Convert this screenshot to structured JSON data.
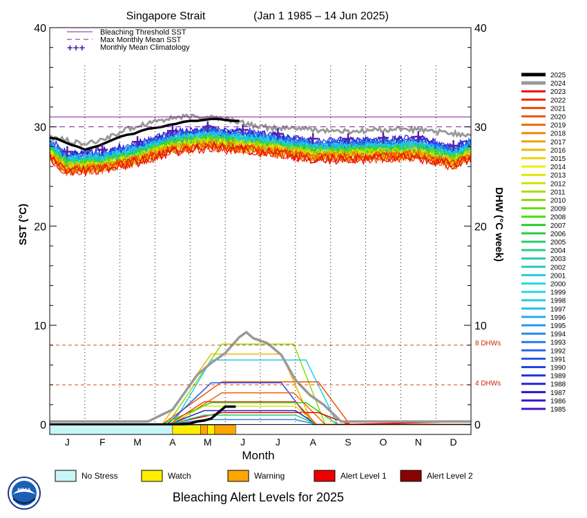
{
  "chart_data": {
    "type": "line",
    "title": "Singapore Strait",
    "subtitle": "(Jan 1 1985 – 14 Jun 2025)",
    "xlabel": "Month",
    "ylabel_left": "SST (°C)",
    "ylabel_right": "DHW (°C week)",
    "ylim": [
      -1,
      40
    ],
    "xlim": [
      0,
      12
    ],
    "yticks": [
      0,
      10,
      20,
      30,
      40
    ],
    "month_labels": [
      "J",
      "F",
      "M",
      "A",
      "M",
      "J",
      "J",
      "A",
      "S",
      "O",
      "N",
      "D"
    ],
    "grid": "vertical dotted lines at month boundaries",
    "references": {
      "bleaching_threshold_sst": 31.0,
      "max_monthly_mean_sst": 30.0,
      "dhw_levels": [
        {
          "value": 8,
          "label": "8 DHWs"
        },
        {
          "value": 4,
          "label": "4 DHWs"
        }
      ]
    },
    "legend_top": [
      {
        "label": "Bleaching Threshold SST",
        "color": "#7a1fa2",
        "style": "solid"
      },
      {
        "label": "Max Monthly Mean SST",
        "color": "#7a1fa2",
        "style": "dashed"
      },
      {
        "label": "Monthly Mean Climatology",
        "color": "#5522aa",
        "style": "plus"
      }
    ],
    "climatology": {
      "months": [
        0.5,
        1.5,
        2.5,
        3.5,
        4.5,
        5.5,
        6.5,
        7.5,
        8.5,
        9.5,
        10.5,
        11.5
      ],
      "values": [
        27.5,
        27.7,
        28.5,
        29.6,
        30.0,
        29.7,
        29.3,
        28.8,
        28.8,
        28.9,
        29.0,
        28.1
      ]
    },
    "year_legend": [
      {
        "year": "2025",
        "color": "#000000"
      },
      {
        "year": "2024",
        "color": "#999999"
      },
      {
        "year": "2023",
        "color": "#ee0000"
      },
      {
        "year": "2022",
        "color": "#ee2200"
      },
      {
        "year": "2021",
        "color": "#ee4400"
      },
      {
        "year": "2020",
        "color": "#ee5500"
      },
      {
        "year": "2019",
        "color": "#ee6600"
      },
      {
        "year": "2018",
        "color": "#ee8800"
      },
      {
        "year": "2017",
        "color": "#eea000"
      },
      {
        "year": "2016",
        "color": "#eeb800"
      },
      {
        "year": "2015",
        "color": "#eed000"
      },
      {
        "year": "2014",
        "color": "#eeee00"
      },
      {
        "year": "2013",
        "color": "#dde800"
      },
      {
        "year": "2012",
        "color": "#c8e600"
      },
      {
        "year": "2011",
        "color": "#aadd00"
      },
      {
        "year": "2010",
        "color": "#88dd00"
      },
      {
        "year": "2009",
        "color": "#66dd00"
      },
      {
        "year": "2008",
        "color": "#44dd00"
      },
      {
        "year": "2007",
        "color": "#22cc22"
      },
      {
        "year": "2006",
        "color": "#22cc44"
      },
      {
        "year": "2005",
        "color": "#22cc66"
      },
      {
        "year": "2004",
        "color": "#22cc88"
      },
      {
        "year": "2003",
        "color": "#22ccaa"
      },
      {
        "year": "2002",
        "color": "#22ccbb"
      },
      {
        "year": "2001",
        "color": "#22ccdd"
      },
      {
        "year": "2000",
        "color": "#22dddd"
      },
      {
        "year": "1999",
        "color": "#22dde0"
      },
      {
        "year": "1998",
        "color": "#22ccee"
      },
      {
        "year": "1997",
        "color": "#22bbee"
      },
      {
        "year": "1996",
        "color": "#22aaee"
      },
      {
        "year": "1995",
        "color": "#2299ee"
      },
      {
        "year": "1994",
        "color": "#2288ee"
      },
      {
        "year": "1993",
        "color": "#2277ee"
      },
      {
        "year": "1992",
        "color": "#2266ee"
      },
      {
        "year": "1991",
        "color": "#2255ee"
      },
      {
        "year": "1990",
        "color": "#2244dd"
      },
      {
        "year": "1989",
        "color": "#2233dd"
      },
      {
        "year": "1988",
        "color": "#2222cc"
      },
      {
        "year": "1987",
        "color": "#2211cc"
      },
      {
        "year": "1986",
        "color": "#3311cc"
      },
      {
        "year": "1985",
        "color": "#4411cc"
      }
    ],
    "sst_2025": {
      "x": [
        0,
        0.2,
        0.4,
        0.6,
        0.8,
        1.0,
        1.2,
        1.4,
        1.6,
        1.8,
        2.0,
        2.2,
        2.4,
        2.6,
        2.8,
        3.0,
        3.2,
        3.4,
        3.6,
        3.8,
        4.0,
        4.2,
        4.4,
        4.6,
        4.8,
        5.0,
        5.2,
        5.4
      ],
      "y": [
        28.9,
        28.8,
        28.5,
        28.2,
        28.0,
        27.7,
        27.9,
        28.1,
        28.4,
        28.7,
        29.0,
        29.2,
        29.3,
        29.6,
        29.8,
        29.9,
        30.0,
        30.2,
        30.3,
        30.5,
        30.6,
        30.6,
        30.7,
        30.8,
        30.8,
        30.7,
        30.6,
        30.6
      ]
    },
    "sst_2024": {
      "x": [
        0,
        0.5,
        1.0,
        1.5,
        2.0,
        2.5,
        3.0,
        3.5,
        4.0,
        4.5,
        5.0,
        5.5,
        6.0,
        6.5,
        7.0,
        7.5,
        8.0,
        8.5,
        9.0,
        9.5,
        10.0,
        10.5,
        11.0,
        11.5,
        12.0
      ],
      "y": [
        29.0,
        28.6,
        28.2,
        28.7,
        29.5,
        30.1,
        30.6,
        30.9,
        31.0,
        31.0,
        30.8,
        30.4,
        30.0,
        29.8,
        29.9,
        29.7,
        29.6,
        29.5,
        29.6,
        29.7,
        29.8,
        29.7,
        29.5,
        29.3,
        29.2
      ]
    },
    "dhw_2025": {
      "x": [
        0,
        3.6,
        4.0,
        4.2,
        4.4,
        4.6,
        4.8,
        5.0,
        5.2,
        5.3
      ],
      "y": [
        0,
        0,
        0.1,
        0.3,
        0.4,
        0.6,
        1.2,
        1.8,
        1.8,
        1.8
      ]
    },
    "dhw_2024": {
      "x": [
        0,
        1.0,
        2.8,
        3.2,
        3.5,
        3.8,
        4.2,
        4.6,
        5.0,
        5.4,
        5.6,
        5.8,
        6.2,
        6.6,
        7.0,
        7.4,
        7.8,
        8.1,
        8.3,
        9.0,
        12.0
      ],
      "y": [
        0.3,
        0.3,
        0.3,
        1.0,
        1.5,
        3.0,
        5.0,
        6.2,
        7.2,
        8.8,
        9.3,
        8.7,
        8.2,
        7.0,
        4.5,
        3.0,
        2.0,
        1.0,
        0.3,
        0.3,
        0.3
      ]
    },
    "dhw_other_peaks": [
      {
        "year": "2016",
        "peak": 7.1
      },
      {
        "year": "2010",
        "peak": 8.1
      },
      {
        "year": "1998",
        "peak": 6.5
      },
      {
        "year": "2020",
        "peak": 4.3
      },
      {
        "year": "1991",
        "peak": 4.2
      },
      {
        "year": "2019",
        "peak": 3.2
      },
      {
        "year": "2007",
        "peak": 2.2
      },
      {
        "year": "2023",
        "peak": 1.2
      }
    ],
    "alert_bar_2025": [
      {
        "from": 0,
        "to": 3.5,
        "level": "No Stress"
      },
      {
        "from": 3.5,
        "to": 4.3,
        "level": "Watch"
      },
      {
        "from": 4.3,
        "to": 4.5,
        "level": "Warning"
      },
      {
        "from": 4.5,
        "to": 4.7,
        "level": "Watch"
      },
      {
        "from": 4.7,
        "to": 5.3,
        "level": "Warning"
      }
    ],
    "alert_legend": [
      {
        "label": "No Stress",
        "color": "#c8f5f5"
      },
      {
        "label": "Watch",
        "color": "#ffee00"
      },
      {
        "label": "Warning",
        "color": "#ffa500"
      },
      {
        "label": "Alert Level 1",
        "color": "#ee0000"
      },
      {
        "label": "Alert Level 2",
        "color": "#8b0000"
      }
    ],
    "footer": "Bleaching Alert Levels for 2025",
    "logo_text": "NOAA"
  }
}
